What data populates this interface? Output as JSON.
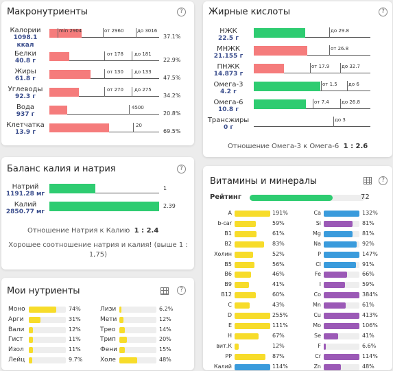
{
  "colors": {
    "red": "#f57c7c",
    "green": "#2ecc71",
    "yellow": "#f7dc2a",
    "blue": "#3a9bdc",
    "purple": "#9b59b6",
    "track": "#eeeeee"
  },
  "macro": {
    "title": "Макронутриенты",
    "help": "?",
    "rows": [
      {
        "name": "Калории",
        "value": "1098.1",
        "unit": "ккал",
        "fill": 0.37,
        "pct": "37.1%",
        "marks": [
          "min 2904",
          "от 2960",
          "до 3016"
        ]
      },
      {
        "name": "Белки",
        "value": "40.8 г",
        "unit": "",
        "fill": 0.23,
        "pct": "22.9%",
        "marks": [
          "от 178",
          "до 181"
        ]
      },
      {
        "name": "Жиры",
        "value": "61.8 г",
        "unit": "",
        "fill": 0.475,
        "pct": "47.5%",
        "marks": [
          "от 130",
          "до 133"
        ]
      },
      {
        "name": "Углеводы",
        "value": "92.3 г",
        "unit": "",
        "fill": 0.342,
        "pct": "34.2%",
        "marks": [
          "от 270",
          "до 275"
        ]
      },
      {
        "name": "Вода",
        "value": "937 г",
        "unit": "",
        "fill": 0.208,
        "pct": "20.8%",
        "marks": [
          "4500"
        ]
      },
      {
        "name": "Клетчатка",
        "value": "13.9 г",
        "unit": "",
        "fill": 0.695,
        "pct": "69.5%",
        "marks": [
          "20"
        ]
      }
    ]
  },
  "fatty": {
    "title": "Жирные кислоты",
    "help": "?",
    "rows": [
      {
        "name": "НЖК",
        "value": "22.5 г",
        "fill": 0.76,
        "color": "green",
        "marks": [
          "до 29.8"
        ]
      },
      {
        "name": "МНЖК",
        "value": "21.155 г",
        "fill": 0.79,
        "color": "red",
        "marks": [
          "от 26.8"
        ]
      },
      {
        "name": "ПНЖК",
        "value": "14.873 г",
        "fill": 0.45,
        "color": "red",
        "marks": [
          "от 17.9",
          "до 32.7"
        ]
      },
      {
        "name": "Омега-3",
        "value": "4.2 г",
        "fill": 0.98,
        "color": "green",
        "marks": [
          "от 1.5",
          "до 6"
        ]
      },
      {
        "name": "Омега-6",
        "value": "10.8 г",
        "fill": 0.77,
        "color": "green",
        "marks": [
          "от 7.4",
          "до 26.8"
        ]
      },
      {
        "name": "Трансжиры",
        "value": "0 г",
        "fill": 0,
        "color": "green",
        "marks": [
          "до 3"
        ]
      }
    ],
    "ratio_label": "Отношение Омега-3 к Омега-6",
    "ratio_value": "1 : 2.6"
  },
  "kna": {
    "title": "Баланс калия и натрия",
    "help": "?",
    "rows": [
      {
        "name": "Натрий",
        "value": "1191.28 мг",
        "fill": 0.42,
        "color": "green",
        "num": "1"
      },
      {
        "name": "Калий",
        "value": "2850.77 мг",
        "fill": 1.0,
        "color": "green",
        "num": "2.39"
      }
    ],
    "ratio_label": "Отношение Натрия к Калию",
    "ratio_value": "1 : 2.4",
    "note": "Хорошее соотношение натрия и калия! (выше 1 : 1,75)"
  },
  "vitamins": {
    "title": "Витамины и минералы",
    "help": "?",
    "rating_label": "Рейтинг",
    "rating_value": "72",
    "rating_fill": 0.72,
    "left": [
      {
        "name": "A",
        "pct": "191%",
        "fill": 1.0,
        "color": "yellow"
      },
      {
        "name": "b-car",
        "pct": "59%",
        "fill": 0.59,
        "color": "yellow"
      },
      {
        "name": "B1",
        "pct": "61%",
        "fill": 0.61,
        "color": "yellow"
      },
      {
        "name": "B2",
        "pct": "83%",
        "fill": 0.83,
        "color": "yellow"
      },
      {
        "name": "Холин",
        "pct": "52%",
        "fill": 0.52,
        "color": "yellow"
      },
      {
        "name": "B5",
        "pct": "56%",
        "fill": 0.56,
        "color": "yellow"
      },
      {
        "name": "B6",
        "pct": "46%",
        "fill": 0.46,
        "color": "yellow"
      },
      {
        "name": "B9",
        "pct": "41%",
        "fill": 0.41,
        "color": "yellow"
      },
      {
        "name": "B12",
        "pct": "60%",
        "fill": 0.6,
        "color": "yellow"
      },
      {
        "name": "C",
        "pct": "43%",
        "fill": 0.43,
        "color": "yellow"
      },
      {
        "name": "D",
        "pct": "255%",
        "fill": 1.0,
        "color": "yellow"
      },
      {
        "name": "E",
        "pct": "111%",
        "fill": 1.0,
        "color": "yellow"
      },
      {
        "name": "H",
        "pct": "67%",
        "fill": 0.67,
        "color": "yellow"
      },
      {
        "name": "вит.К",
        "pct": "12%",
        "fill": 0.12,
        "color": "yellow"
      },
      {
        "name": "PP",
        "pct": "87%",
        "fill": 0.87,
        "color": "yellow"
      },
      {
        "name": "Калий",
        "pct": "114%",
        "fill": 1.0,
        "color": "blue"
      }
    ],
    "right": [
      {
        "name": "Ca",
        "pct": "132%",
        "fill": 1.0,
        "color": "blue"
      },
      {
        "name": "Si",
        "pct": "81%",
        "fill": 0.81,
        "color": "purple"
      },
      {
        "name": "Mg",
        "pct": "81%",
        "fill": 0.81,
        "color": "blue"
      },
      {
        "name": "Na",
        "pct": "92%",
        "fill": 0.92,
        "color": "blue"
      },
      {
        "name": "P",
        "pct": "147%",
        "fill": 1.0,
        "color": "blue"
      },
      {
        "name": "Cl",
        "pct": "91%",
        "fill": 0.91,
        "color": "blue"
      },
      {
        "name": "Fe",
        "pct": "66%",
        "fill": 0.66,
        "color": "purple"
      },
      {
        "name": "I",
        "pct": "59%",
        "fill": 0.59,
        "color": "purple"
      },
      {
        "name": "Co",
        "pct": "384%",
        "fill": 1.0,
        "color": "purple"
      },
      {
        "name": "Mn",
        "pct": "61%",
        "fill": 0.61,
        "color": "purple"
      },
      {
        "name": "Cu",
        "pct": "413%",
        "fill": 1.0,
        "color": "purple"
      },
      {
        "name": "Mo",
        "pct": "106%",
        "fill": 1.0,
        "color": "purple"
      },
      {
        "name": "Se",
        "pct": "41%",
        "fill": 0.41,
        "color": "purple"
      },
      {
        "name": "F",
        "pct": "6.6%",
        "fill": 0.066,
        "color": "purple"
      },
      {
        "name": "Cr",
        "pct": "114%",
        "fill": 1.0,
        "color": "purple"
      },
      {
        "name": "Zn",
        "pct": "48%",
        "fill": 0.48,
        "color": "purple"
      }
    ]
  },
  "nutrients": {
    "title": "Мои нутриенты",
    "help": "?",
    "left": [
      {
        "name": "Моно",
        "pct": "74%",
        "fill": 0.74
      },
      {
        "name": "Арги",
        "pct": "31%",
        "fill": 0.31
      },
      {
        "name": "Вали",
        "pct": "12%",
        "fill": 0.12
      },
      {
        "name": "Гист",
        "pct": "11%",
        "fill": 0.11
      },
      {
        "name": "Изол",
        "pct": "11%",
        "fill": 0.11
      },
      {
        "name": "Лейц",
        "pct": "9.7%",
        "fill": 0.097
      }
    ],
    "right": [
      {
        "name": "Лизи",
        "pct": "6.2%",
        "fill": 0.062
      },
      {
        "name": "Мети",
        "pct": "12%",
        "fill": 0.12
      },
      {
        "name": "Трео",
        "pct": "14%",
        "fill": 0.14
      },
      {
        "name": "Трип",
        "pct": "20%",
        "fill": 0.2
      },
      {
        "name": "Фени",
        "pct": "15%",
        "fill": 0.15
      },
      {
        "name": "Холе",
        "pct": "48%",
        "fill": 0.48
      }
    ]
  }
}
